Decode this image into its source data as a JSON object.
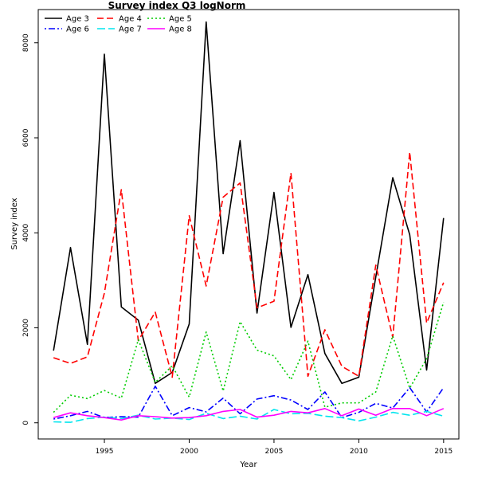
{
  "chart_data": {
    "type": "line",
    "title": "Survey index Q3 logNorm",
    "xlabel": "Year",
    "ylabel": "Survey index",
    "xlim": [
      1991.1,
      2015.9
    ],
    "ylim": [
      -340,
      8700
    ],
    "x_ticks": [
      1995,
      2000,
      2005,
      2010,
      2015
    ],
    "y_ticks": [
      0,
      2000,
      4000,
      6000,
      8000
    ],
    "grid": false,
    "legend": "top-left",
    "x": [
      1992,
      1993,
      1994,
      1995,
      1996,
      1997,
      1998,
      1999,
      2000,
      2001,
      2002,
      2003,
      2004,
      2005,
      2006,
      2007,
      2008,
      2009,
      2010,
      2011,
      2012,
      2013,
      2014,
      2015
    ],
    "series": [
      {
        "name": "Age 3",
        "color": "#000000",
        "dash": "solid",
        "values": [
          1520,
          3690,
          1650,
          7760,
          2440,
          2160,
          830,
          1060,
          2080,
          8440,
          3560,
          5940,
          2310,
          4850,
          2010,
          3120,
          1460,
          830,
          960,
          3070,
          5160,
          3960,
          1110,
          4310
        ]
      },
      {
        "name": "Age 4",
        "color": "#ff0000",
        "dash": "dashed",
        "values": [
          1370,
          1250,
          1390,
          2730,
          4910,
          1730,
          2330,
          960,
          4360,
          2880,
          4750,
          5050,
          2420,
          2560,
          5260,
          980,
          1960,
          1190,
          980,
          3320,
          1800,
          5700,
          2100,
          2950
        ]
      },
      {
        "name": "Age 5",
        "color": "#00cc00",
        "dash": "dotted",
        "values": [
          220,
          580,
          510,
          680,
          520,
          1750,
          850,
          1200,
          540,
          1910,
          670,
          2130,
          1530,
          1410,
          910,
          1720,
          330,
          420,
          420,
          650,
          1830,
          730,
          1350,
          2540
        ]
      },
      {
        "name": "Age 6",
        "color": "#0000ff",
        "dash": "dotdash",
        "values": [
          80,
          150,
          240,
          110,
          130,
          120,
          770,
          150,
          320,
          230,
          520,
          190,
          500,
          570,
          480,
          280,
          650,
          110,
          220,
          410,
          310,
          740,
          230,
          740
        ]
      },
      {
        "name": "Age 7",
        "color": "#00e5ee",
        "dash": "longdash",
        "values": [
          20,
          10,
          90,
          120,
          90,
          160,
          80,
          100,
          70,
          200,
          90,
          140,
          80,
          280,
          190,
          200,
          140,
          110,
          40,
          120,
          220,
          160,
          240,
          140
        ]
      },
      {
        "name": "Age 8",
        "color": "#ff00ff",
        "dash": "solid",
        "values": [
          110,
          210,
          150,
          110,
          60,
          150,
          130,
          100,
          110,
          150,
          240,
          280,
          120,
          160,
          240,
          210,
          300,
          150,
          290,
          160,
          300,
          300,
          150,
          300
        ]
      }
    ]
  }
}
